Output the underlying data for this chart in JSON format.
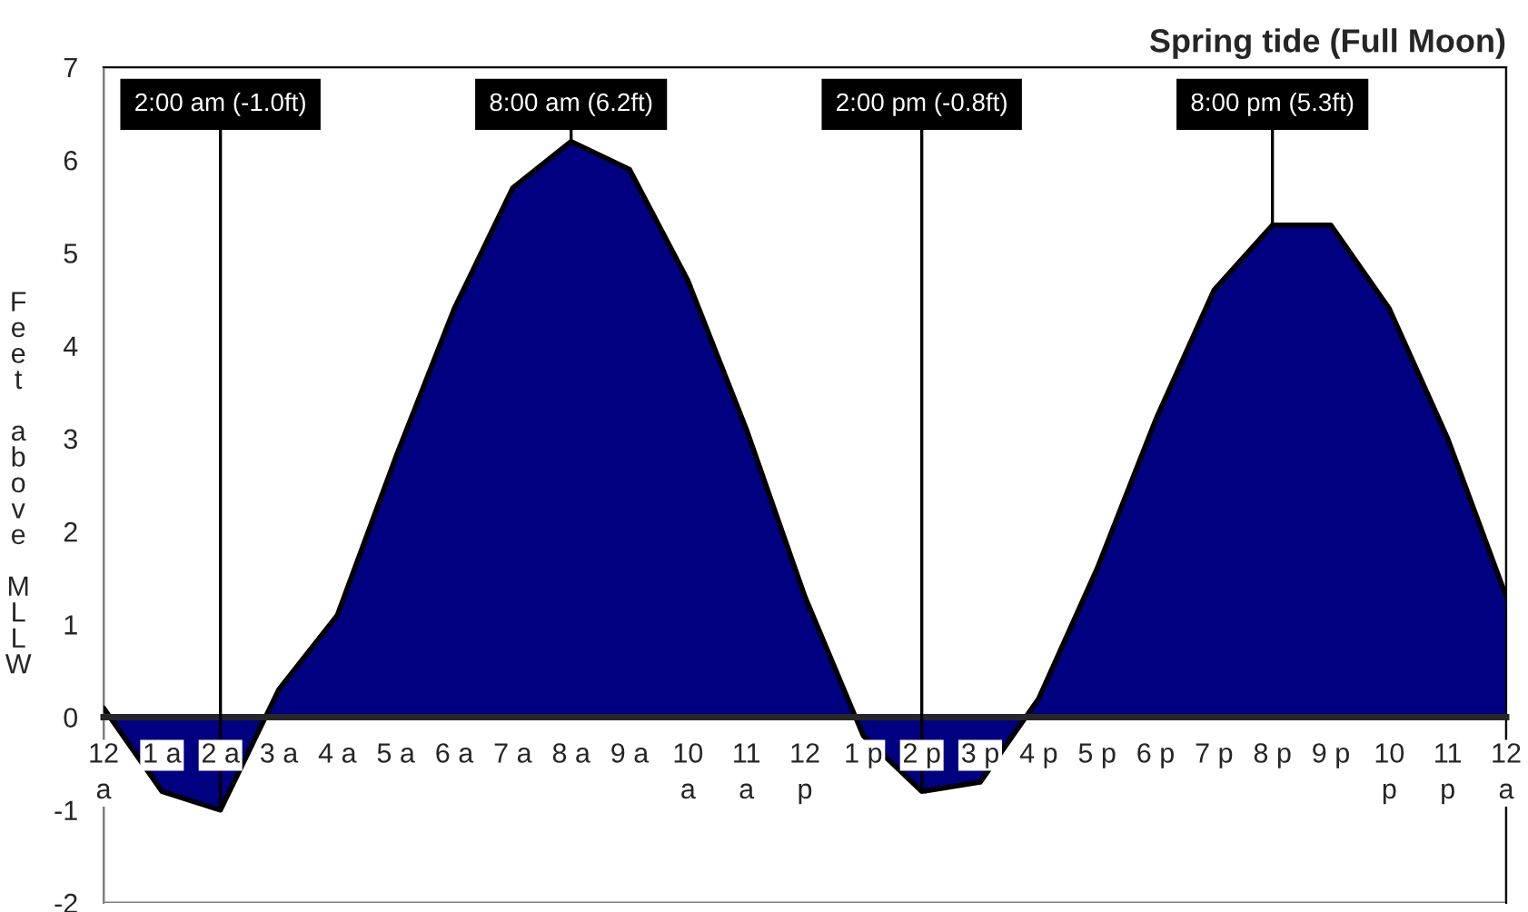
{
  "chart_data": {
    "type": "area",
    "title": "Spring tide (Full Moon)",
    "ylabel": "Feet above MLLW",
    "categories": [
      "12\na",
      "1 a",
      "2 a",
      "3 a",
      "4 a",
      "5 a",
      "6 a",
      "7 a",
      "8 a",
      "9 a",
      "10\na",
      "11\na",
      "12\np",
      "1 p",
      "2 p",
      "3 p",
      "4 p",
      "5 p",
      "6 p",
      "7 p",
      "8 p",
      "9 p",
      "10\np",
      "11\np",
      "12\na"
    ],
    "series": [
      {
        "color": "#000080",
        "values": [
          0.1,
          -0.8,
          -1.0,
          0.3,
          1.1,
          2.8,
          4.4,
          5.7,
          6.2,
          5.9,
          4.7,
          3.1,
          1.3,
          -0.2,
          -0.8,
          -0.7,
          0.2,
          1.6,
          3.2,
          4.6,
          5.3,
          5.3,
          4.4,
          3.0,
          1.3
        ]
      }
    ],
    "ylim": [
      -2,
      7
    ],
    "yticks": [
      -2,
      -1,
      0,
      1,
      2,
      3,
      4,
      5,
      6,
      7
    ],
    "grid": false,
    "legend": false,
    "annotations": [
      {
        "text": "2:00 am (-1.0ft)",
        "x": "2 a",
        "y": -1.0
      },
      {
        "text": "8:00 am (6.2ft)",
        "x": "8 a",
        "y": 6.2
      },
      {
        "text": "2:00 pm (-0.8ft)",
        "x": "2 p",
        "y": -0.8
      },
      {
        "text": "8:00 pm (5.3ft)",
        "x": "8 p",
        "y": 5.3
      }
    ]
  }
}
